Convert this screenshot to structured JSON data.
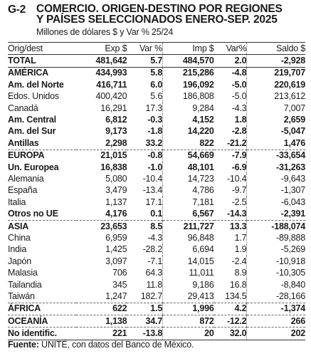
{
  "header": {
    "id": "G-2",
    "title_line1": "COMERCIO. ORIGEN-DESTINO POR REGIONES",
    "title_line2": "Y PAÍSES SELECCIONADOS ENERO-SEP. 2025",
    "subtitle": "Millones de dólares $ y Var % 25/24"
  },
  "columns": [
    "Orig/dest",
    "Exp $",
    "Var %",
    "Imp $",
    "Var%",
    "Saldo $"
  ],
  "rows": [
    {
      "name": "TOTAL",
      "exp": "481,642",
      "var_exp": "5.7",
      "imp": "484,570",
      "var_imp": "2.0",
      "saldo": "-2,928",
      "bold": true,
      "sep": "solid"
    },
    {
      "name": "AMÉRICA",
      "exp": "434,993",
      "var_exp": "5.8",
      "imp": "215,286",
      "var_imp": "-4.8",
      "saldo": "219,707",
      "bold": true,
      "sep": "solid"
    },
    {
      "name": "Am. del Norte",
      "exp": "416,711",
      "var_exp": "6.0",
      "imp": "196,092",
      "var_imp": "-5.0",
      "saldo": "220,619",
      "bold": true,
      "sep": ""
    },
    {
      "name": "Edos. Unidos",
      "exp": "400,420",
      "var_exp": "5.6",
      "imp": "186,808",
      "var_imp": "-5.0",
      "saldo": "213,612",
      "bold": false,
      "sep": ""
    },
    {
      "name": "Canadá",
      "exp": "16,291",
      "var_exp": "17.3",
      "imp": "9,284",
      "var_imp": "-4.3",
      "saldo": "7,007",
      "bold": false,
      "sep": ""
    },
    {
      "name": "Am. Central",
      "exp": "6,812",
      "var_exp": "-0.3",
      "imp": "4,152",
      "var_imp": "1.8",
      "saldo": "2,659",
      "bold": true,
      "sep": ""
    },
    {
      "name": "Am. del Sur",
      "exp": "9,173",
      "var_exp": "-1.8",
      "imp": "14,220",
      "var_imp": "-2.8",
      "saldo": "-5,047",
      "bold": true,
      "sep": ""
    },
    {
      "name": "Antillas",
      "exp": "2,298",
      "var_exp": "33.2",
      "imp": "822",
      "var_imp": "-21.2",
      "saldo": "1,476",
      "bold": true,
      "sep": ""
    },
    {
      "name": "EUROPA",
      "exp": "21,015",
      "var_exp": "-0.8",
      "imp": "54,669",
      "var_imp": "-7.9",
      "saldo": "-33,654",
      "bold": true,
      "sep": "dashed"
    },
    {
      "name": "Un. Europea",
      "exp": "16,838",
      "var_exp": "-1.0",
      "imp": "48,101",
      "var_imp": "-6.9",
      "saldo": "-31,263",
      "bold": true,
      "sep": ""
    },
    {
      "name": "Alemania",
      "exp": "5,080",
      "var_exp": "-10.4",
      "imp": "14,723",
      "var_imp": "-10.4",
      "saldo": "-9,643",
      "bold": false,
      "sep": ""
    },
    {
      "name": "España",
      "exp": "3,479",
      "var_exp": "-13.4",
      "imp": "4,786",
      "var_imp": "-9.7",
      "saldo": "-1,307",
      "bold": false,
      "sep": ""
    },
    {
      "name": "Italia",
      "exp": "1,137",
      "var_exp": "17.1",
      "imp": "7,181",
      "var_imp": "-2.5",
      "saldo": "-6,043",
      "bold": false,
      "sep": ""
    },
    {
      "name": "Otros no UE",
      "exp": "4,176",
      "var_exp": "0.1",
      "imp": "6,567",
      "var_imp": "-14.3",
      "saldo": "-2,391",
      "bold": true,
      "sep": ""
    },
    {
      "name": "ASIA",
      "exp": "23,653",
      "var_exp": "8.5",
      "imp": "211,727",
      "var_imp": "13.3",
      "saldo": "-188,074",
      "bold": true,
      "sep": "dashed"
    },
    {
      "name": "China",
      "exp": "6,959",
      "var_exp": "-4.3",
      "imp": "96,848",
      "var_imp": "1.7",
      "saldo": "-89,888",
      "bold": false,
      "sep": ""
    },
    {
      "name": "India",
      "exp": "1,425",
      "var_exp": "-28.2",
      "imp": "6,694",
      "var_imp": "1.9",
      "saldo": "-5,269",
      "bold": false,
      "sep": ""
    },
    {
      "name": "Japón",
      "exp": "3,097",
      "var_exp": "-7.1",
      "imp": "14,015",
      "var_imp": "-2.4",
      "saldo": "-10,918",
      "bold": false,
      "sep": ""
    },
    {
      "name": "Malasia",
      "exp": "706",
      "var_exp": "64.3",
      "imp": "11,011",
      "var_imp": "8.9",
      "saldo": "-10,305",
      "bold": false,
      "sep": ""
    },
    {
      "name": "Tailandia",
      "exp": "345",
      "var_exp": "11.8",
      "imp": "9,186",
      "var_imp": "16.8",
      "saldo": "-8,840",
      "bold": false,
      "sep": ""
    },
    {
      "name": "Taiwán",
      "exp": "1,247",
      "var_exp": "182.7",
      "imp": "29,413",
      "var_imp": "134.5",
      "saldo": "-28,166",
      "bold": false,
      "sep": ""
    },
    {
      "name": "ÁFRICA",
      "exp": "622",
      "var_exp": "1.5",
      "imp": "1,996",
      "var_imp": "4.2",
      "saldo": "-1,374",
      "bold": true,
      "sep": "dashed"
    },
    {
      "name": "OCEANÍA",
      "exp": "1,138",
      "var_exp": "34.7",
      "imp": "872",
      "var_imp": "-12.2",
      "saldo": "266",
      "bold": true,
      "sep": "dashed"
    },
    {
      "name": "No identific.",
      "exp": "221",
      "var_exp": "-13.8",
      "imp": "20",
      "var_imp": "32.0",
      "saldo": "202",
      "bold": true,
      "sep": "dashed"
    }
  ],
  "footer": {
    "label": "Fuente:",
    "text": " UNITÉ, con datos del Banco de México."
  }
}
